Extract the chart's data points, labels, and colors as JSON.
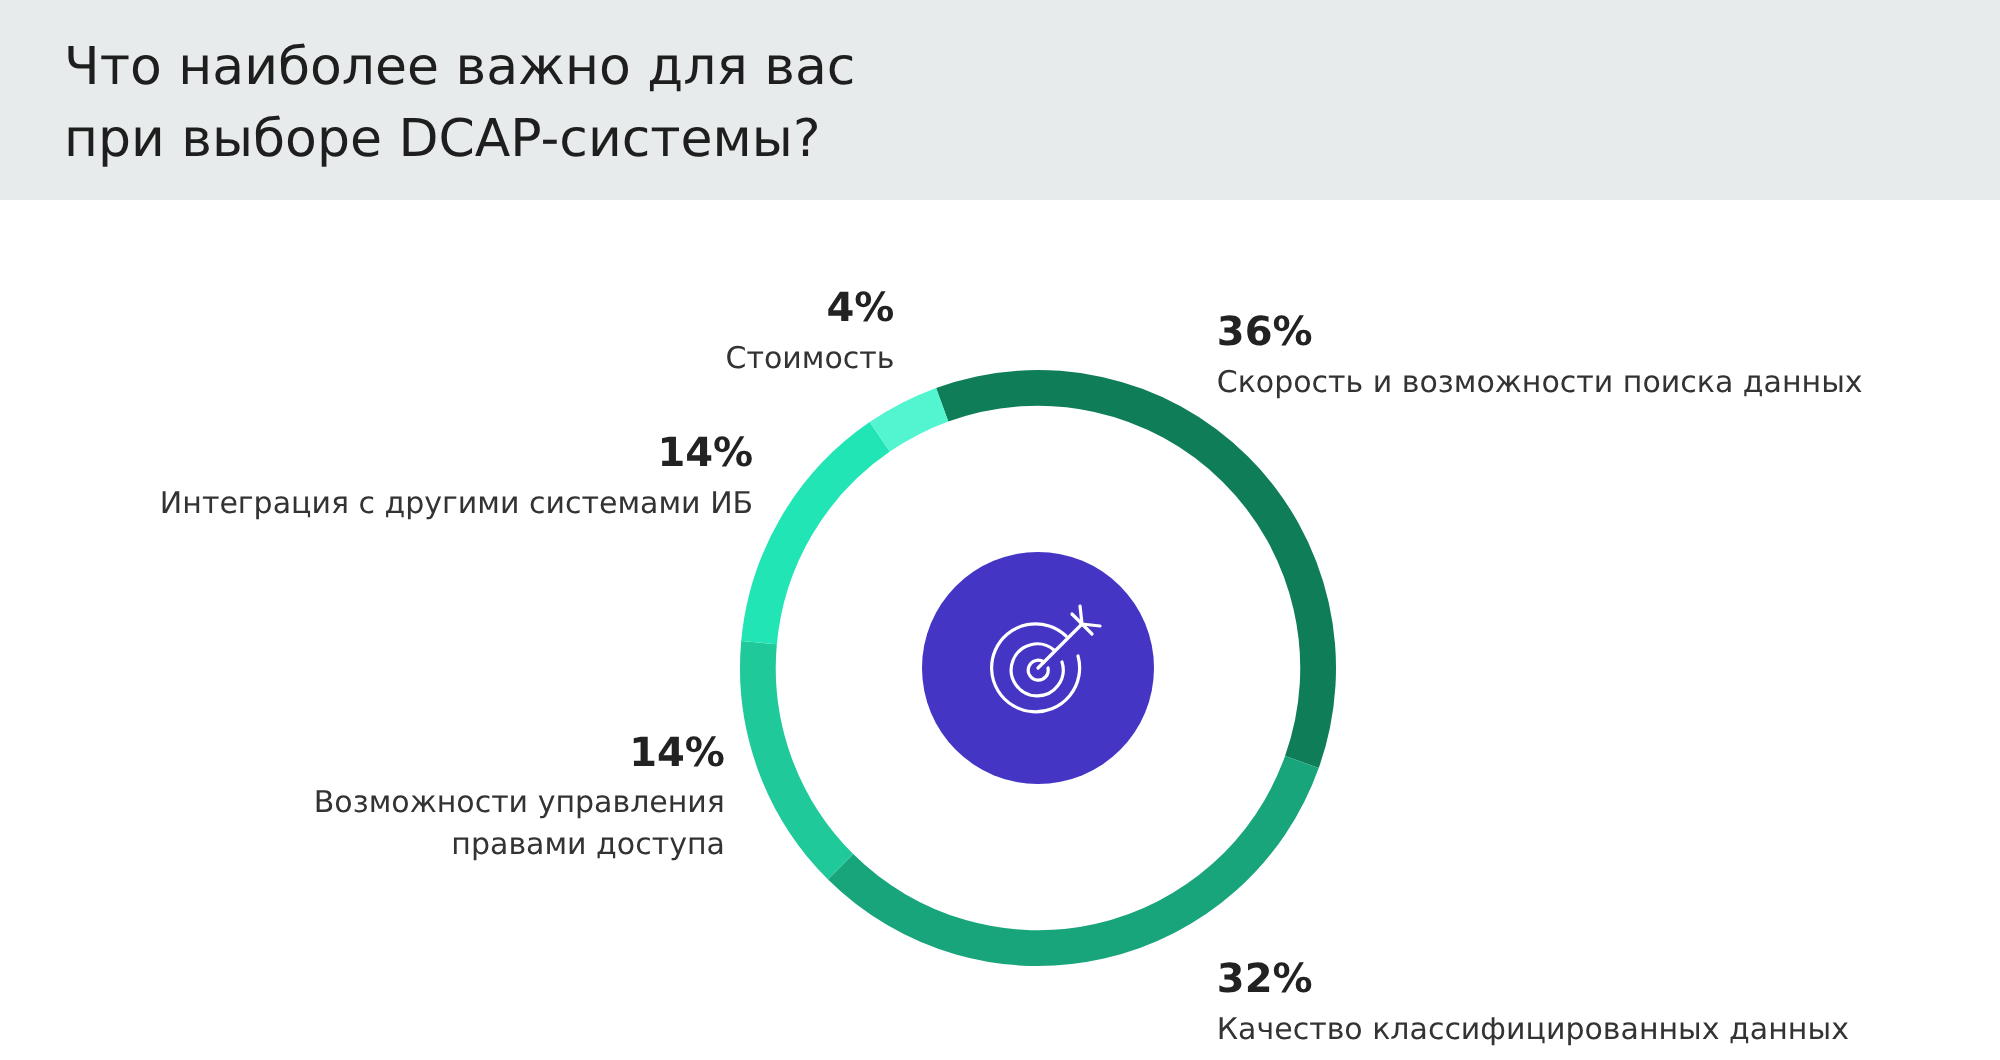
{
  "chart_data": {
    "type": "donut",
    "title": "Что наиболее важно для вас при выборе DCAP-системы?",
    "categories": [
      "Скорость и возможности поиска данных",
      "Качество классифицированных данных",
      "Возможности управления правами доступа",
      "Интеграция с другими системами ИБ",
      "Стоимость"
    ],
    "values": [
      36,
      32,
      14,
      14,
      4
    ],
    "colors": [
      "#0e7d58",
      "#19a57c",
      "#1fc99a",
      "#22e5b5",
      "#52f5cf"
    ],
    "value_labels": [
      "36%",
      "32%",
      "14%",
      "14%",
      "4%"
    ],
    "legend": false
  }
}
